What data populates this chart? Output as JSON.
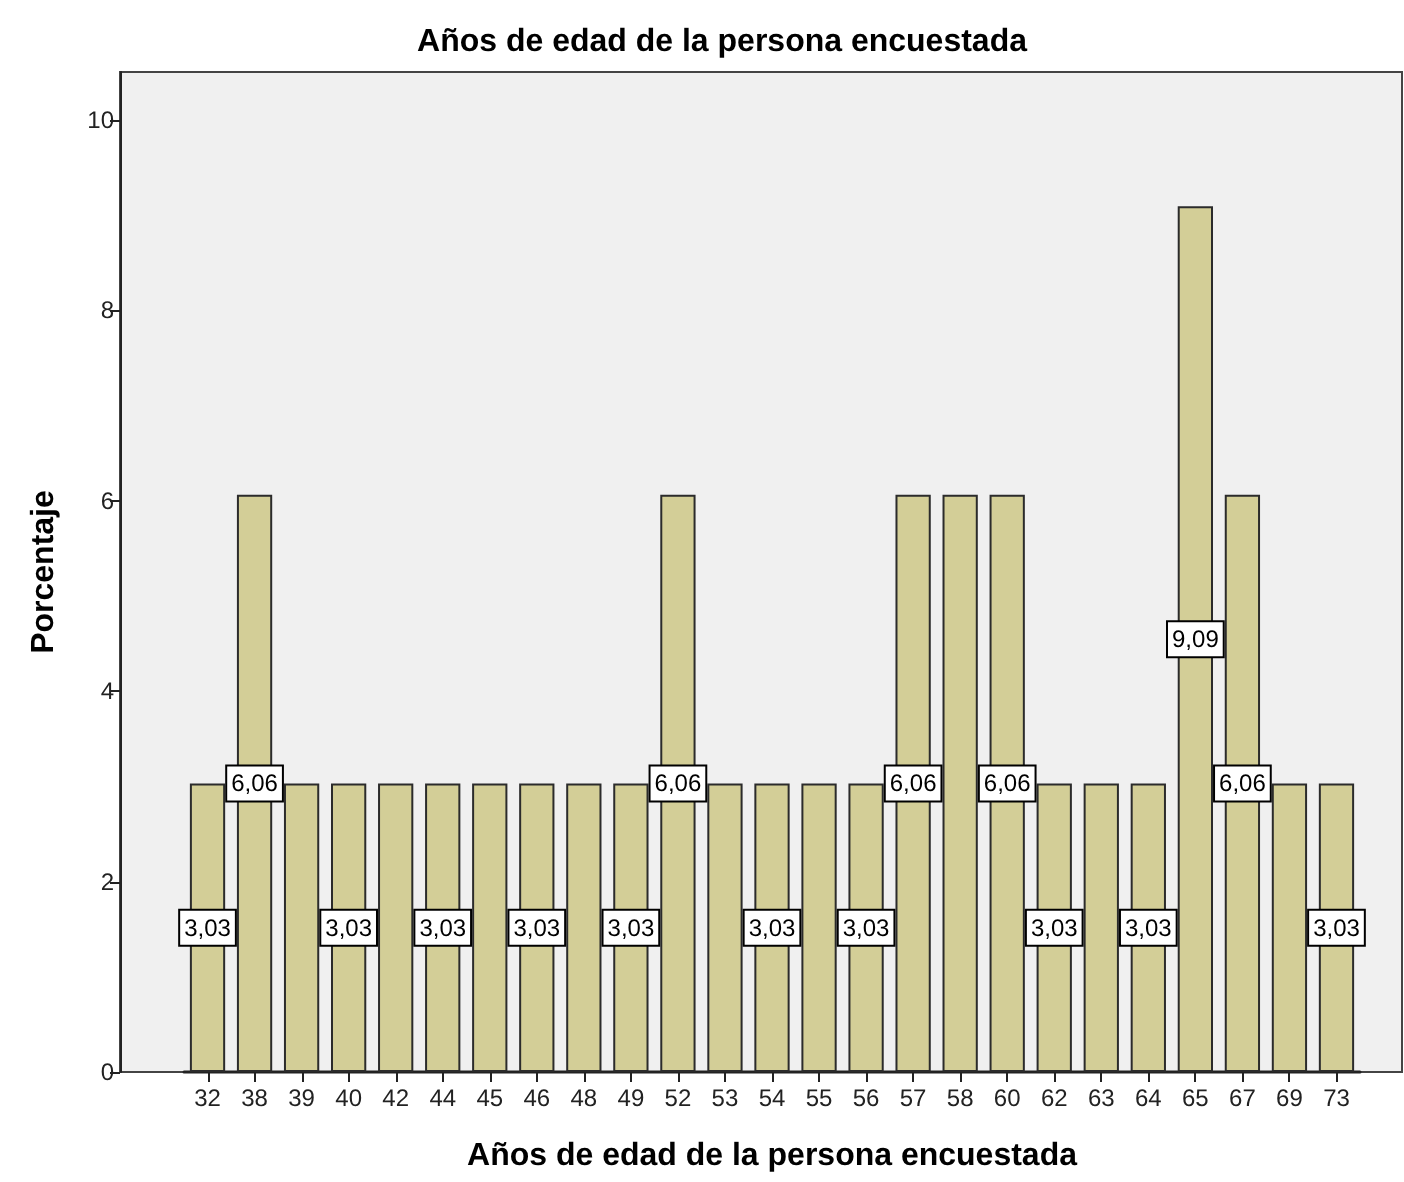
{
  "chart_data": {
    "type": "bar",
    "title": "Años de edad de la persona encuestada",
    "xlabel": "Años de edad de la persona encuestada",
    "ylabel": "Porcentaje",
    "categories": [
      "32",
      "38",
      "39",
      "40",
      "42",
      "44",
      "45",
      "46",
      "48",
      "49",
      "52",
      "53",
      "54",
      "55",
      "56",
      "57",
      "58",
      "60",
      "62",
      "63",
      "64",
      "65",
      "67",
      "69",
      "73"
    ],
    "values": [
      3.03,
      6.06,
      3.03,
      3.03,
      3.03,
      3.03,
      3.03,
      3.03,
      3.03,
      3.03,
      6.06,
      3.03,
      3.03,
      3.03,
      3.03,
      6.06,
      6.06,
      6.06,
      3.03,
      3.03,
      3.03,
      9.09,
      6.06,
      3.03,
      3.03
    ],
    "value_labels": [
      "3,03",
      "6,06",
      null,
      "3,03",
      null,
      "3,03",
      null,
      "3,03",
      null,
      "3,03",
      "6,06",
      null,
      "3,03",
      null,
      "3,03",
      "6,06",
      null,
      "6,06",
      "3,03",
      null,
      "3,03",
      "9,09",
      "6,06",
      null,
      "3,03"
    ],
    "color": "#d3ce97",
    "ylim": [
      0,
      10.5
    ],
    "yticks": [
      0,
      2,
      4,
      6,
      8,
      10
    ]
  }
}
